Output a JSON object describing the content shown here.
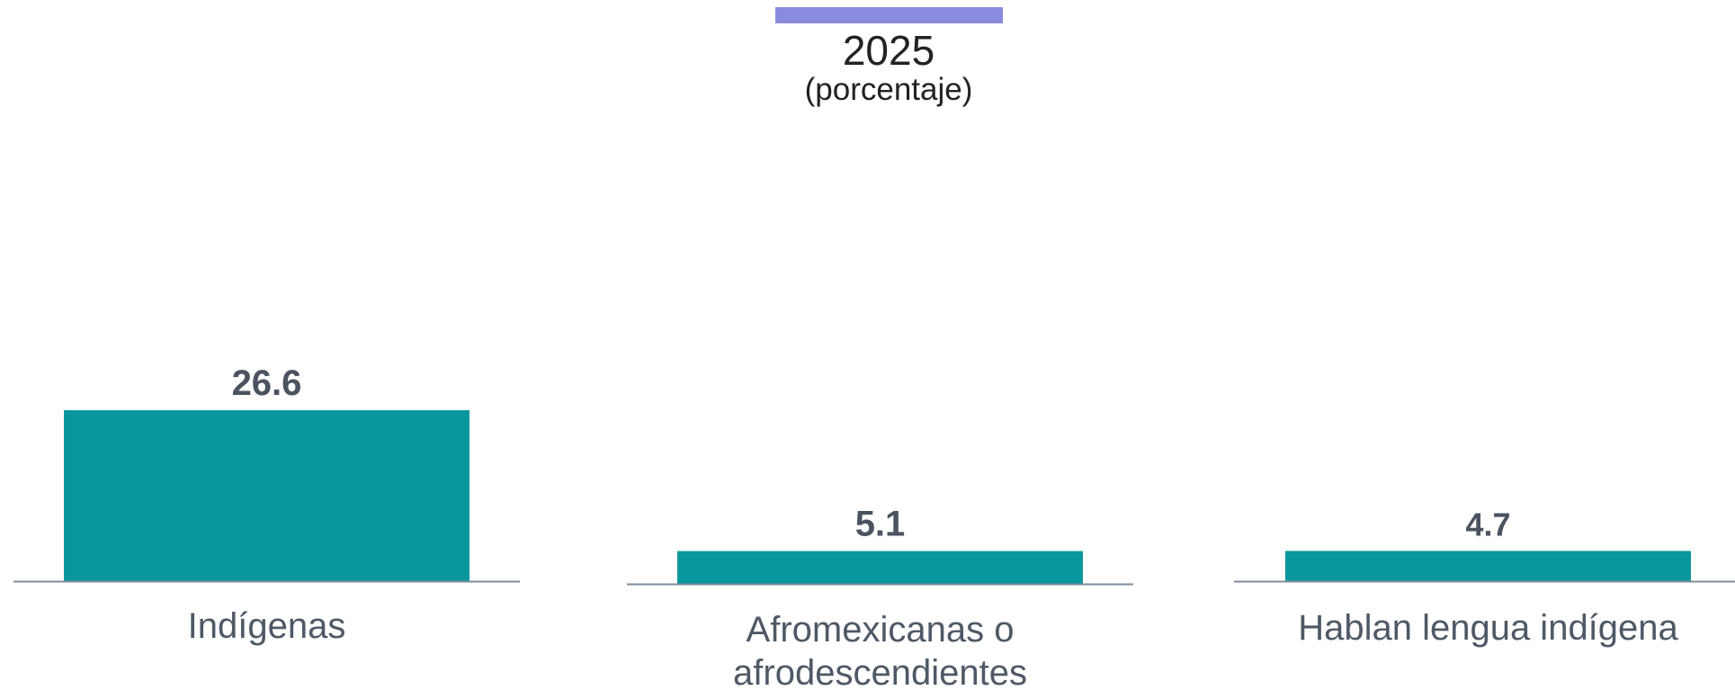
{
  "colors": {
    "accent_bar": "#8b8be0",
    "bar": "#08979c",
    "baseline": "#7f8c9a",
    "value_text": "#4a5360",
    "category_text": "#4e5966"
  },
  "chart_data": {
    "type": "bar",
    "title": "2025",
    "subtitle": "(porcentaje)",
    "categories": [
      "Indígenas",
      "Afromexicanas o afrodescendientes",
      "Hablan lengua indígena"
    ],
    "category_lines": [
      [
        "Indígenas"
      ],
      [
        "Afromexicanas o",
        "afrodescendientes"
      ],
      [
        "Hablan lengua indígena"
      ]
    ],
    "values": [
      26.6,
      5.1,
      4.7
    ],
    "value_labels": [
      "26.6",
      "5.1",
      "4.7"
    ],
    "xlabel": "",
    "ylabel": "",
    "ylim": [
      0,
      26.6
    ],
    "grid": false,
    "legend": "none"
  }
}
